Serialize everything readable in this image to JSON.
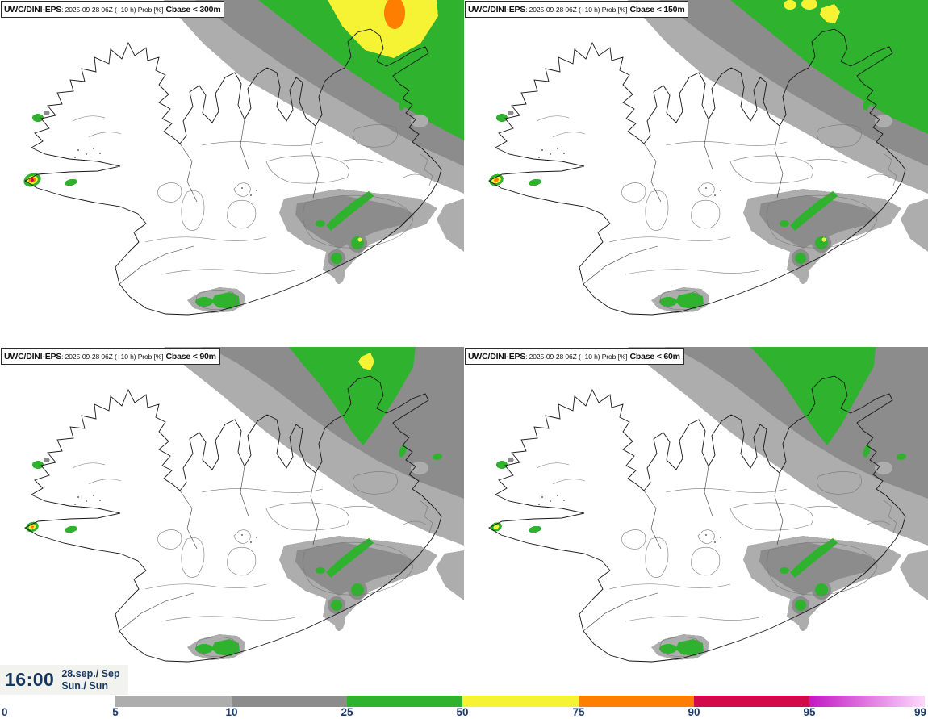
{
  "panels": [
    {
      "model": "UWC/DINI-EPS",
      "info": ": 2025-09-28 06Z (+10 h) Prob [%]",
      "threshold": "Cbase < 300m"
    },
    {
      "model": "UWC/DINI-EPS",
      "info": ": 2025-09-28 06Z (+10 h) Prob [%]",
      "threshold": "Cbase < 150m"
    },
    {
      "model": "UWC/DINI-EPS",
      "info": ": 2025-09-28 06Z (+10 h) Prob [%]",
      "threshold": "Cbase < 90m"
    },
    {
      "model": "UWC/DINI-EPS",
      "info": ": 2025-09-28 06Z (+10 h) Prob [%]",
      "threshold": "Cbase < 60m"
    }
  ],
  "clock": {
    "time": "16:00",
    "date": "28.sep./ Sep",
    "day": "Sun./ Sun",
    "text_color": "#17365d",
    "bg_color": "#f2f2ee"
  },
  "colorbar": {
    "ticks": [
      "0",
      "5",
      "10",
      "25",
      "50",
      "75",
      "90",
      "95",
      "99"
    ],
    "segments": [
      {
        "range": "0-5",
        "color": "transparent"
      },
      {
        "range": "5-10",
        "color": "#adadad"
      },
      {
        "range": "10-25",
        "color": "#8c8c8c"
      },
      {
        "range": "25-50",
        "color": "#2fb32f"
      },
      {
        "range": "50-75",
        "color": "#f6f335"
      },
      {
        "range": "75-90",
        "color": "#fd7e00"
      },
      {
        "range": "90-95",
        "color": "#d20a4c"
      },
      {
        "range": "95-99",
        "color": "#c417c4",
        "color_end": "#fdd9fd"
      }
    ],
    "label_color": "#1b3a6d"
  },
  "map_colors": {
    "prob_5_gray": "#adadad",
    "prob_10_gray": "#8c8c8c",
    "prob_25_green": "#2fb32f",
    "prob_50_yellow": "#f6f335",
    "prob_75_orange": "#fd7e00",
    "prob_90_red": "#d20a4c",
    "coastline": "#161616",
    "contour": "#787878",
    "boundary": "#3a3a3a"
  }
}
